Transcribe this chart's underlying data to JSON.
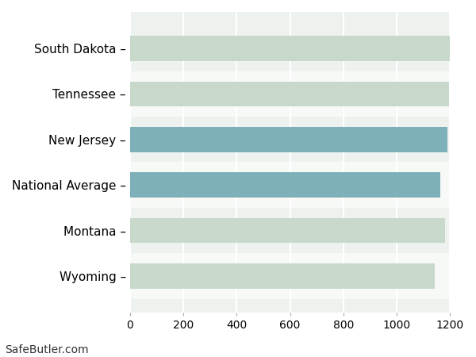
{
  "categories": [
    "South Dakota",
    "Tennessee",
    "New Jersey",
    "National Average",
    "Montana",
    "Wyoming"
  ],
  "values": [
    1200,
    1195,
    1190,
    1163,
    1182,
    1143
  ],
  "bar_colors": [
    "#c8d9cc",
    "#c8d9cc",
    "#7eb0ba",
    "#7eb0ba",
    "#c8d9cc",
    "#c8d9cc"
  ],
  "background_color": "#ffffff",
  "grid_color": "#ffffff",
  "plot_bg_color": "#edf2ee",
  "row_bg_colors": [
    "#edf2ee",
    "#f7f9f7"
  ],
  "xlim": [
    0,
    1200
  ],
  "xticks": [
    0,
    200,
    400,
    600,
    800,
    1000,
    1200
  ],
  "footnote": "SafeButler.com",
  "footnote_fontsize": 10,
  "label_fontsize": 11,
  "tick_fontsize": 10,
  "bar_height": 0.55
}
